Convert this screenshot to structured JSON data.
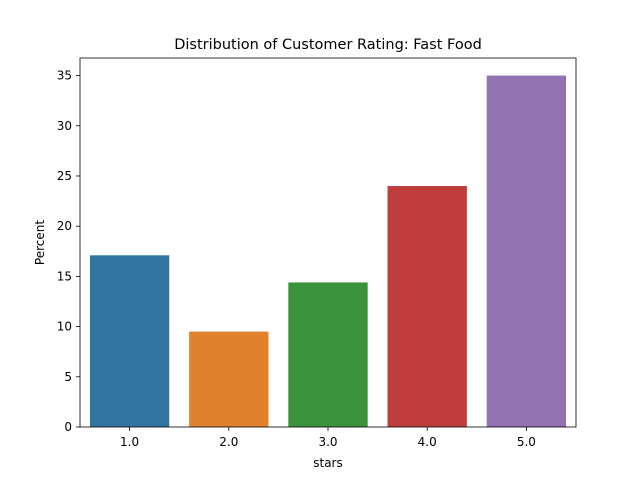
{
  "chart_data": {
    "type": "bar",
    "title": "Distribution of Customer Rating: Fast Food",
    "xlabel": "stars",
    "ylabel": "Percent",
    "categories": [
      "1.0",
      "2.0",
      "3.0",
      "4.0",
      "5.0"
    ],
    "values": [
      17.1,
      9.5,
      14.4,
      24.0,
      35.0
    ],
    "colors": [
      "#3274a1",
      "#e1812c",
      "#3a923a",
      "#c03d3e",
      "#9372b2"
    ],
    "ylim": [
      0,
      36.75
    ],
    "yticks": [
      0,
      5,
      10,
      15,
      20,
      25,
      30,
      35
    ],
    "grid": false,
    "legend": "none"
  }
}
